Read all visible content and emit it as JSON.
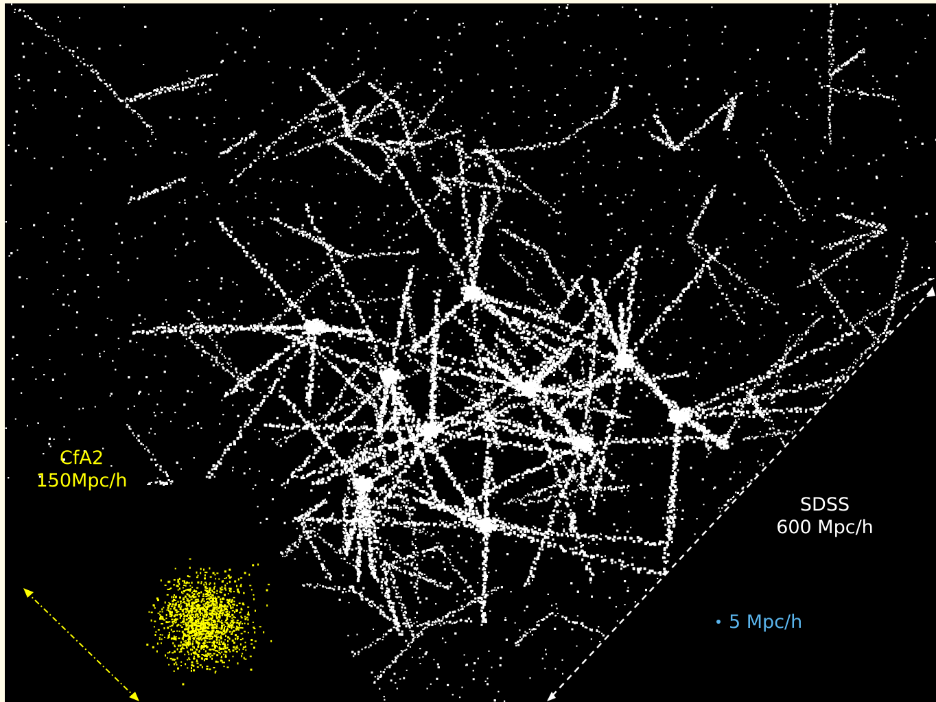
{
  "surveys": {
    "cfa2": {
      "name": "CfA2",
      "depth": "150Mpc/h",
      "color": "#ffff00"
    },
    "sdss": {
      "name": "SDSS",
      "depth": "600 Mpc/h",
      "color": "#ffffff"
    }
  },
  "scale_marker": {
    "text": "5 Mpc/h",
    "color": "#5ab4ec"
  },
  "colors": {
    "background": "#000000",
    "frame": "#fffbe6"
  }
}
